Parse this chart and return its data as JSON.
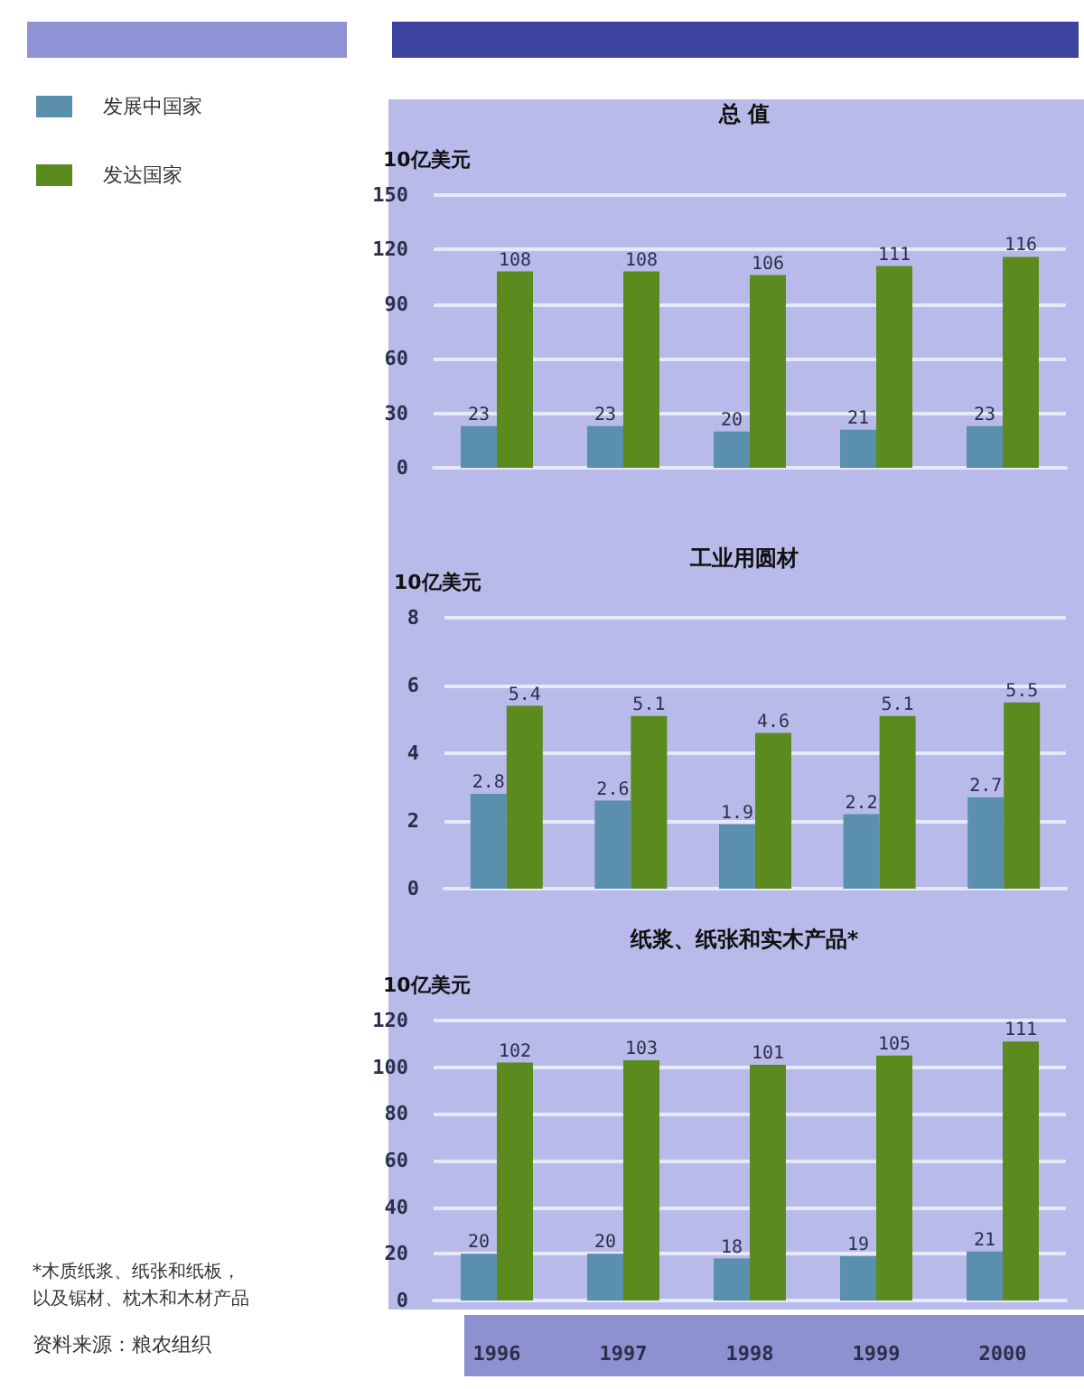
{
  "chart_data": [
    {
      "type": "bar",
      "title": "总 值",
      "ylabel": "10亿美元",
      "categories": [
        "1996",
        "1997",
        "1998",
        "1999",
        "2000"
      ],
      "series": [
        {
          "name": "发展中国家",
          "color": "#5b8fae",
          "values": [
            23,
            23,
            20,
            21,
            23
          ]
        },
        {
          "name": "发达国家",
          "color": "#5b8a1f",
          "values": [
            108,
            108,
            106,
            111,
            116
          ]
        }
      ],
      "ylim": [
        0,
        150
      ],
      "yticks": [
        0,
        30,
        60,
        90,
        120,
        150
      ],
      "grid": "y",
      "data_labels": true,
      "legend": "left",
      "tick_labels": "y"
    },
    {
      "type": "bar",
      "title": "工业用圆材",
      "ylabel": "10亿美元",
      "categories": [
        "1996",
        "1997",
        "1998",
        "1999",
        "2000"
      ],
      "series": [
        {
          "color": "#5b8fae",
          "values": [
            2.8,
            2.6,
            1.9,
            2.2,
            2.7
          ]
        },
        {
          "color": "#5b8a1f",
          "values": [
            5.4,
            5.1,
            4.6,
            5.1,
            5.5
          ]
        }
      ],
      "ylim": [
        0,
        8
      ],
      "yticks": [
        0,
        2,
        4,
        6,
        8
      ],
      "grid": "y",
      "data_labels": true,
      "tick_labels": "y"
    },
    {
      "type": "bar",
      "title": "纸浆、纸张和实木产品*",
      "ylabel": "10亿美元",
      "categories": [
        "1996",
        "1997",
        "1998",
        "1999",
        "2000"
      ],
      "series": [
        {
          "color": "#5b8fae",
          "values": [
            20,
            20,
            18,
            19,
            21
          ]
        },
        {
          "color": "#5b8a1f",
          "values": [
            102,
            103,
            101,
            105,
            111
          ]
        }
      ],
      "ylim": [
        0,
        120
      ],
      "yticks": [
        0,
        20,
        40,
        60,
        80,
        100,
        120
      ],
      "grid": "y",
      "data_labels": true,
      "annotations": [
        "*木质纸浆、纸张和纸板，以及锯材、枕木和木材产品",
        "资料来源：粮农组织"
      ]
    }
  ]
}
